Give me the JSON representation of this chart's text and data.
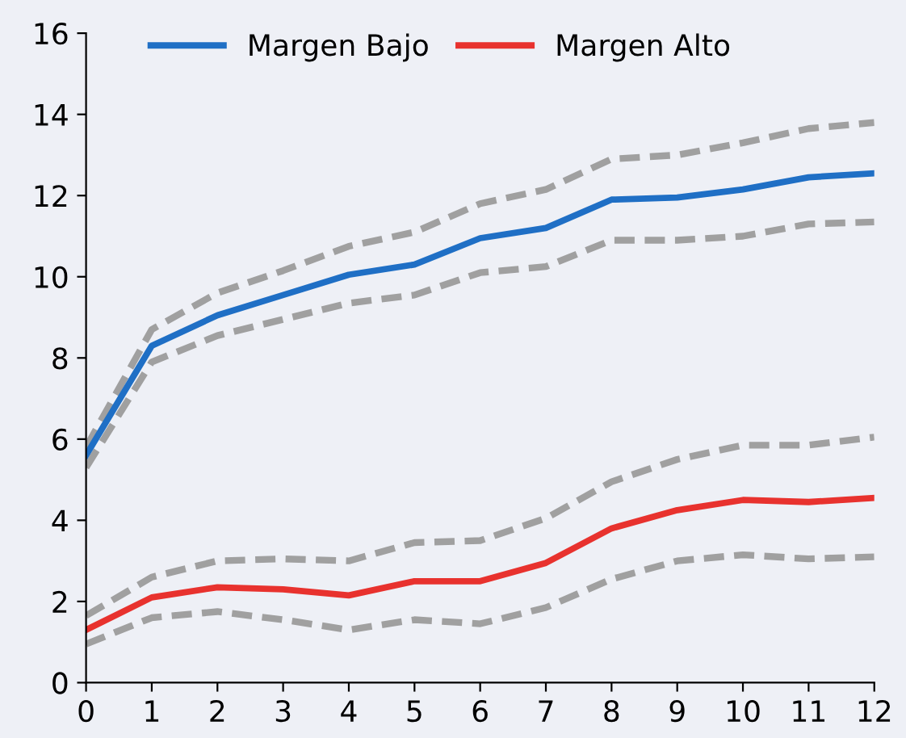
{
  "chart_data": {
    "type": "line",
    "x": [
      0,
      1,
      2,
      3,
      4,
      5,
      6,
      7,
      8,
      9,
      10,
      11,
      12
    ],
    "series": [
      {
        "color": "#a0a0a0",
        "line_style": "dashed",
        "values": [
          5.8,
          8.7,
          9.6,
          10.15,
          10.75,
          11.1,
          11.8,
          12.15,
          12.9,
          13.0,
          13.3,
          13.65,
          13.8
        ]
      },
      {
        "color": "#a0a0a0",
        "line_style": "dashed",
        "values": [
          5.3,
          7.9,
          8.55,
          8.95,
          9.35,
          9.55,
          10.1,
          10.25,
          10.9,
          10.9,
          11.0,
          11.3,
          11.35
        ]
      },
      {
        "color": "#a0a0a0",
        "line_style": "dashed",
        "values": [
          1.65,
          2.6,
          3.0,
          3.05,
          3.0,
          3.45,
          3.5,
          4.05,
          4.95,
          5.5,
          5.85,
          5.85,
          6.05
        ]
      },
      {
        "color": "#a0a0a0",
        "line_style": "dashed",
        "values": [
          0.95,
          1.6,
          1.75,
          1.55,
          1.3,
          1.55,
          1.45,
          1.85,
          2.55,
          3.0,
          3.15,
          3.05,
          3.1
        ]
      },
      {
        "name": "Margen Bajo",
        "color": "#1f6fc5",
        "line_style": "solid",
        "values": [
          5.6,
          8.3,
          9.05,
          9.55,
          10.05,
          10.3,
          10.95,
          11.2,
          11.9,
          11.95,
          12.15,
          12.45,
          12.55
        ]
      },
      {
        "name": "Margen Alto",
        "color": "#e8322e",
        "line_style": "solid",
        "values": [
          1.3,
          2.1,
          2.35,
          2.3,
          2.15,
          2.5,
          2.5,
          2.95,
          3.8,
          4.25,
          4.5,
          4.45,
          4.55
        ]
      }
    ],
    "xlim": [
      0,
      12
    ],
    "xticks": [
      0,
      1,
      2,
      3,
      4,
      5,
      6,
      7,
      8,
      9,
      10,
      11,
      12
    ],
    "ylim": [
      0,
      16
    ],
    "yticks": [
      0,
      2,
      4,
      6,
      8,
      10,
      12,
      14,
      16
    ],
    "grid": false,
    "legend": "top",
    "marker": "none"
  }
}
